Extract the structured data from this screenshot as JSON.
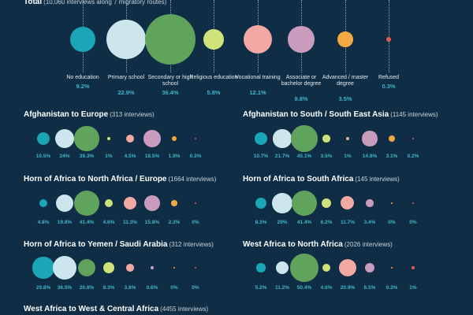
{
  "categories": [
    {
      "name": "No education",
      "color": "#1aa6b7"
    },
    {
      "name": "Primary school",
      "color": "#cde6ee"
    },
    {
      "name": "Secondary or high school",
      "color": "#5fa35c"
    },
    {
      "name": "Religious education",
      "color": "#cfe27a"
    },
    {
      "name": "Vocational training",
      "color": "#f2a9a3"
    },
    {
      "name": "Associate or bachelor degree",
      "color": "#c99bbc"
    },
    {
      "name": "Advanced / master degree",
      "color": "#f2a945"
    },
    {
      "name": "Refused",
      "color": "#e25a55"
    }
  ],
  "chart_data": [
    {
      "type": "bubble",
      "title": "Total",
      "subtitle": "(10,060 interviews along 7 migratory routes)",
      "values": [
        9.2,
        22.9,
        36.4,
        5.8,
        12.1,
        9.8,
        3.5,
        0.3
      ],
      "labels": [
        "9.2%",
        "22.9%",
        "36.4%",
        "5.8%",
        "12.1%",
        "9.8%",
        "3.5%",
        "0.3%"
      ]
    },
    {
      "type": "bubble",
      "title": "Afghanistan to Europe",
      "subtitle": "(313 interviews)",
      "values": [
        10.5,
        24,
        39.3,
        1,
        4.5,
        18.5,
        1.9,
        0.3
      ],
      "labels": [
        "10.5%",
        "24%",
        "39.3%",
        "1%",
        "4.5%",
        "18.5%",
        "1.9%",
        "0.3%"
      ]
    },
    {
      "type": "bubble",
      "title": "Afghanistan to South / South East Asia",
      "subtitle": "(1145 interviews)",
      "values": [
        10.7,
        21.7,
        45.1,
        3.5,
        1,
        14.8,
        3.1,
        0.2
      ],
      "labels": [
        "10.7%",
        "21.7%",
        "45.1%",
        "3.5%",
        "1%",
        "14.8%",
        "3.1%",
        "0.2%"
      ]
    },
    {
      "type": "bubble",
      "title": "Horn of Africa to North Africa / Europe",
      "subtitle": "(1664 interviews)",
      "values": [
        4.8,
        19.8,
        41.4,
        4.6,
        11.3,
        15.8,
        2.3,
        0
      ],
      "labels": [
        "4.8%",
        "19.8%",
        "41.4%",
        "4.6%",
        "11.3%",
        "15.8%",
        "2.3%",
        "0%"
      ]
    },
    {
      "type": "bubble",
      "title": "Horn of Africa to South Africa",
      "subtitle": "(145 interviews)",
      "values": [
        8.3,
        29,
        41.4,
        6.2,
        11.7,
        3.4,
        0,
        0
      ],
      "labels": [
        "8.3%",
        "29%",
        "41.4%",
        "6.2%",
        "11.7%",
        "3.4%",
        "0%",
        "0%"
      ]
    },
    {
      "type": "bubble",
      "title": "Horn of Africa to Yemen / Saudi Arabia",
      "subtitle": "(312 interviews)",
      "values": [
        29.8,
        36.5,
        20.8,
        8.3,
        3.8,
        0.6,
        0,
        0
      ],
      "labels": [
        "29.8%",
        "36.5%",
        "20.8%",
        "8.3%",
        "3.8%",
        "0.6%",
        "0%",
        "0%"
      ]
    },
    {
      "type": "bubble",
      "title": "West Africa to North Africa",
      "subtitle": "(2026 interviews)",
      "values": [
        5.2,
        11.2,
        50.4,
        4.6,
        20.9,
        6.5,
        0.3,
        1
      ],
      "labels": [
        "5.2%",
        "11.2%",
        "50.4%",
        "4.6%",
        "20.9%",
        "6.5%",
        "0.3%",
        "1%"
      ]
    },
    {
      "type": "bubble",
      "title": "West Africa to West & Central Africa",
      "subtitle": "(4455 interviews)",
      "values": [],
      "labels": []
    }
  ]
}
